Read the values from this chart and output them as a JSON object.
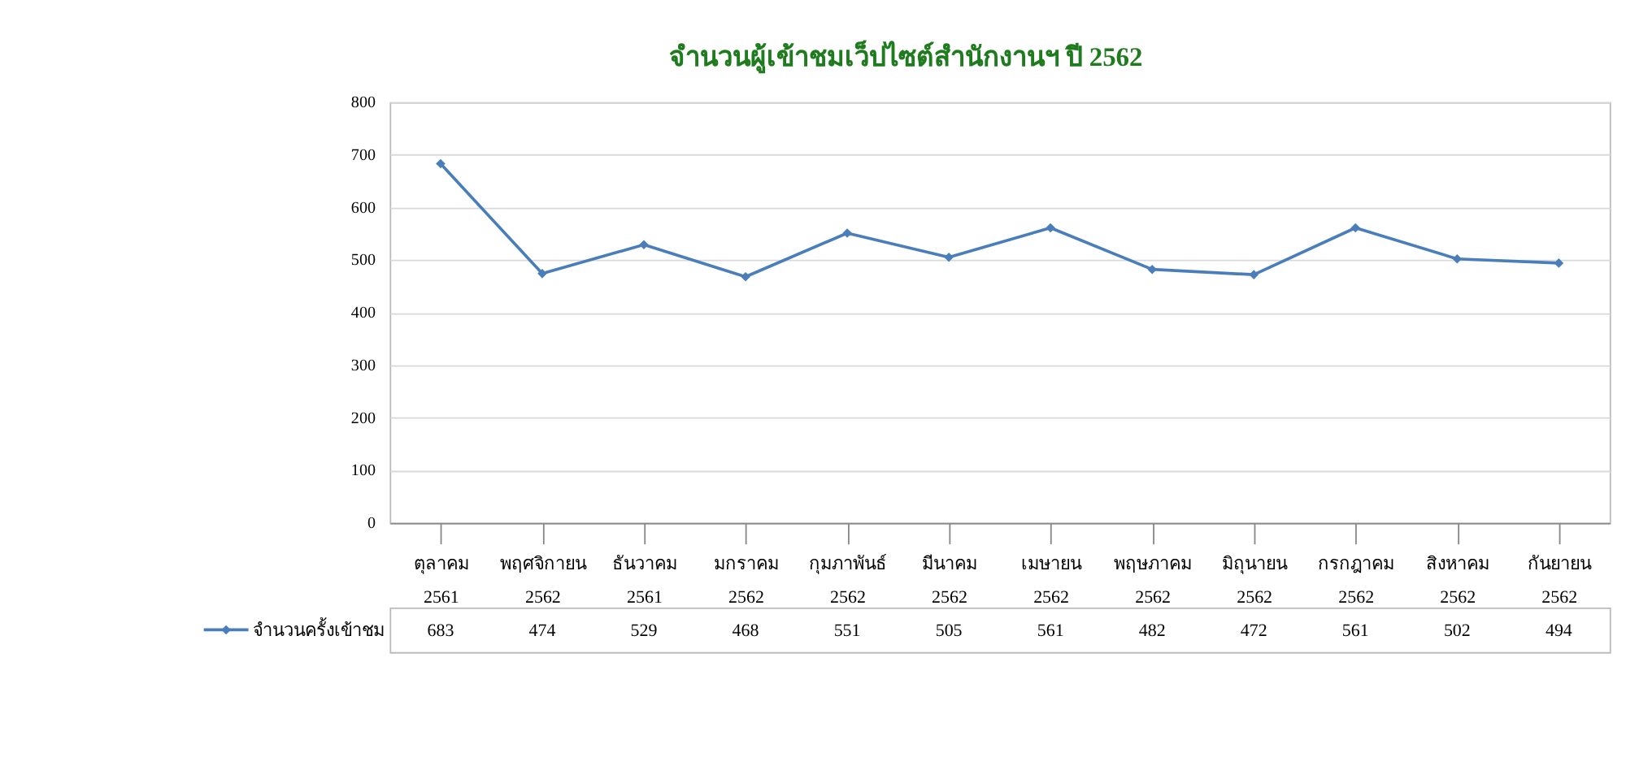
{
  "chart_data": {
    "type": "line",
    "title": "จำนวนผู้เข้าชมเว็ปไซต์สำนักงานฯ ปี 2562",
    "categories": [
      "ตุลาคม 2561",
      "พฤศจิกายน 2562",
      "ธันวาคม 2561",
      "มกราคม 2562",
      "กุมภาพันธ์ 2562",
      "มีนาคม 2562",
      "เมษายน 2562",
      "พฤษภาคม 2562",
      "มิถุนายน 2562",
      "กรกฎาคม 2562",
      "สิงหาคม 2562",
      "กันยายน 2562"
    ],
    "series": [
      {
        "name": "จำนวนครั้งเข้าชม",
        "color": "#4a7ebb",
        "values": [
          683,
          474,
          529,
          468,
          551,
          505,
          561,
          482,
          472,
          561,
          502,
          494
        ]
      }
    ],
    "ylim": [
      0,
      800
    ],
    "yticks": [
      0,
      100,
      200,
      300,
      400,
      500,
      600,
      700,
      800
    ],
    "grid": "y",
    "marker": "diamond",
    "line_style": "solid",
    "data_labels": true,
    "legend": "bottom left"
  }
}
